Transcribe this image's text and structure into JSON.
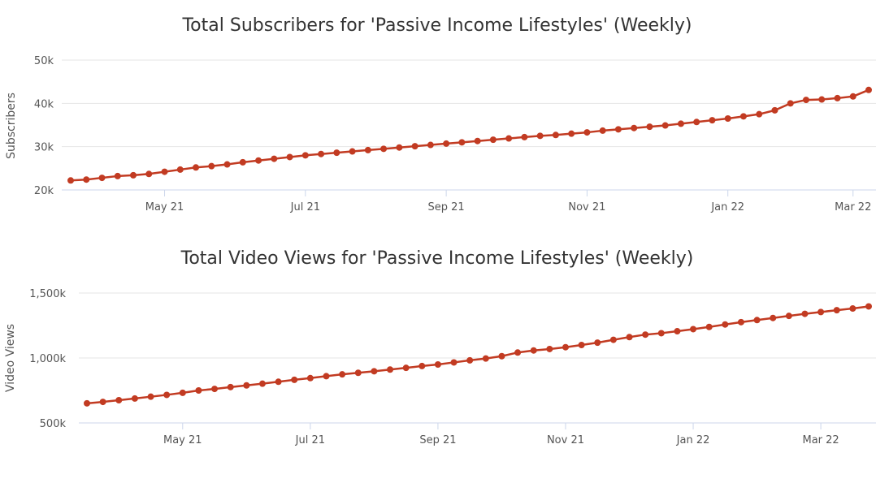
{
  "series_color": "#c23b22",
  "chart_data": [
    {
      "type": "line",
      "title": "Total Subscribers for 'Passive Income Lifestyles' (Weekly)",
      "ylabel": "Subscribers",
      "ylim": [
        20000,
        50000
      ],
      "y_ticks": [
        {
          "value": 20000,
          "label": "20k"
        },
        {
          "value": 30000,
          "label": "30k"
        },
        {
          "value": 40000,
          "label": "40k"
        },
        {
          "value": 50000,
          "label": "50k"
        }
      ],
      "x_ticks": [
        {
          "index": 6,
          "label": "May 21"
        },
        {
          "index": 15,
          "label": "Jul 21"
        },
        {
          "index": 24,
          "label": "Sep 21"
        },
        {
          "index": 33,
          "label": "Nov 21"
        },
        {
          "index": 42,
          "label": "Jan 22"
        },
        {
          "index": 50,
          "label": "Mar 22"
        }
      ],
      "series": [
        {
          "values": [
            22200,
            22400,
            22800,
            23200,
            23400,
            23700,
            24200,
            24700,
            25200,
            25500,
            25900,
            26400,
            26800,
            27200,
            27600,
            28000,
            28300,
            28600,
            28900,
            29200,
            29500,
            29800,
            30100,
            30400,
            30700,
            31000,
            31300,
            31600,
            31900,
            32200,
            32500,
            32700,
            33000,
            33300,
            33700,
            34000,
            34300,
            34600,
            34900,
            35300,
            35700,
            36100,
            36500,
            37000,
            37500,
            38400,
            40000,
            40800,
            40900,
            41200,
            41600,
            43100
          ]
        }
      ]
    },
    {
      "type": "line",
      "title": "Total Video Views for 'Passive Income Lifestyles' (Weekly)",
      "ylabel": "Video Views",
      "ylim": [
        500000,
        1500000
      ],
      "y_ticks": [
        {
          "value": 500000,
          "label": "500k"
        },
        {
          "value": 1000000,
          "label": "1,000k"
        },
        {
          "value": 1500000,
          "label": "1,500k"
        }
      ],
      "x_ticks": [
        {
          "index": 6,
          "label": "May 21"
        },
        {
          "index": 14,
          "label": "Jul 21"
        },
        {
          "index": 22,
          "label": "Sep 21"
        },
        {
          "index": 30,
          "label": "Nov 21"
        },
        {
          "index": 38,
          "label": "Jan 22"
        },
        {
          "index": 46,
          "label": "Mar 22"
        }
      ],
      "series": [
        {
          "values": [
            651000,
            662000,
            675000,
            688000,
            702000,
            716000,
            732000,
            750000,
            762000,
            776000,
            789000,
            802000,
            817000,
            832000,
            845000,
            860000,
            874000,
            886000,
            898000,
            911000,
            924000,
            938000,
            950000,
            966000,
            982000,
            996000,
            1014000,
            1042000,
            1058000,
            1069000,
            1083000,
            1100000,
            1118000,
            1140000,
            1161000,
            1180000,
            1191000,
            1206000,
            1222000,
            1239000,
            1258000,
            1276000,
            1292000,
            1308000,
            1324000,
            1340000,
            1354000,
            1368000,
            1381000,
            1397000
          ]
        }
      ]
    }
  ]
}
